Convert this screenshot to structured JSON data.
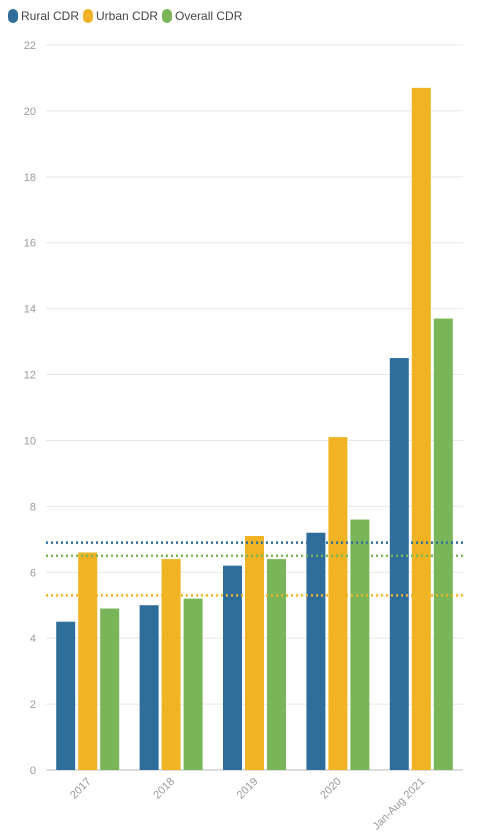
{
  "colors": {
    "rural": "#2f6e9b",
    "urban": "#f0b323",
    "overall": "#7ab659",
    "grid": "#e8e8e8",
    "axis": "#bbbbbb",
    "tick_text": "#9a9a9a"
  },
  "chart_data": {
    "type": "bar",
    "title": "",
    "xlabel": "",
    "ylabel": "",
    "ylim": [
      0,
      22
    ],
    "yticks": [
      0,
      2,
      4,
      6,
      8,
      10,
      12,
      14,
      16,
      18,
      20,
      22
    ],
    "grid": true,
    "legend_position": "top-left",
    "categories": [
      "2017",
      "2018",
      "2019",
      "2020",
      "Jan-Aug 2021"
    ],
    "series": [
      {
        "name": "Rural CDR",
        "color_key": "rural",
        "values": [
          4.5,
          5.0,
          6.2,
          7.2,
          12.5
        ]
      },
      {
        "name": "Urban CDR",
        "color_key": "urban",
        "values": [
          6.6,
          6.4,
          7.1,
          10.1,
          20.7
        ]
      },
      {
        "name": "Overall CDR",
        "color_key": "overall",
        "values": [
          4.9,
          5.2,
          6.4,
          7.6,
          13.7
        ]
      }
    ],
    "reference_lines": [
      {
        "series": "Rural CDR",
        "color_key": "rural",
        "value": 6.9,
        "style": "dotted"
      },
      {
        "series": "Overall CDR",
        "color_key": "overall",
        "value": 6.5,
        "style": "dotted"
      },
      {
        "series": "Urban CDR",
        "color_key": "urban",
        "value": 5.3,
        "style": "dotted"
      }
    ]
  }
}
